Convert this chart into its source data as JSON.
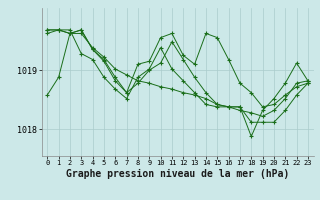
{
  "background_color": "#cce8e8",
  "grid_color": "#aacccc",
  "line_color": "#1a6e1a",
  "xlabel": "Graphe pression niveau de la mer (hPa)",
  "xlabel_fontsize": 7,
  "xlim": [
    -0.5,
    23.5
  ],
  "ylim": [
    1017.55,
    1020.05
  ],
  "yticks": [
    1018,
    1019
  ],
  "xticks": [
    0,
    1,
    2,
    3,
    4,
    5,
    6,
    7,
    8,
    9,
    10,
    11,
    12,
    13,
    14,
    15,
    16,
    17,
    18,
    19,
    20,
    21,
    22,
    23
  ],
  "series": [
    [
      1018.58,
      1018.88,
      1019.62,
      1019.68,
      1019.35,
      1019.15,
      1018.82,
      1018.62,
      1019.1,
      1019.15,
      1019.55,
      1019.62,
      1019.25,
      1019.1,
      1019.62,
      1019.55,
      1019.18,
      1018.78,
      1018.62,
      1018.38,
      1018.42,
      1018.58,
      1018.72,
      1018.78
    ],
    [
      1019.68,
      1019.68,
      1019.62,
      1019.68,
      1019.35,
      1019.18,
      1018.88,
      1018.62,
      1018.78,
      1019.0,
      1019.12,
      1019.48,
      1019.18,
      1018.88,
      1018.62,
      1018.42,
      1018.38,
      1018.38,
      1017.88,
      1018.32,
      1018.52,
      1018.78,
      1019.12,
      1018.82
    ],
    [
      1019.62,
      1019.68,
      1019.68,
      1019.28,
      1019.18,
      1018.88,
      1018.68,
      1018.52,
      1018.88,
      1019.02,
      1019.38,
      1019.02,
      1018.82,
      1018.62,
      1018.42,
      1018.38,
      1018.38,
      1018.38,
      1018.12,
      1018.12,
      1018.12,
      1018.32,
      1018.58,
      1018.78
    ],
    [
      1019.68,
      1019.68,
      1019.62,
      1019.62,
      1019.38,
      1019.22,
      1019.02,
      1018.92,
      1018.82,
      1018.78,
      1018.72,
      1018.68,
      1018.62,
      1018.58,
      1018.52,
      1018.42,
      1018.38,
      1018.32,
      1018.28,
      1018.22,
      1018.32,
      1018.52,
      1018.78,
      1018.82
    ]
  ]
}
